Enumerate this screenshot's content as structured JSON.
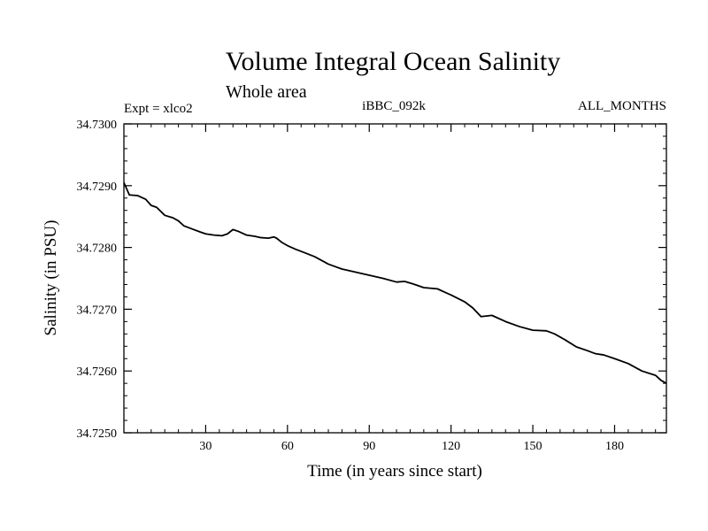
{
  "chart_data": {
    "type": "line",
    "title": "Volume Integral Ocean Salinity",
    "subtitle": "Whole area",
    "experiment": "Expt = xlco2",
    "run_id": "iBBC_092k",
    "months": "ALL_MONTHS",
    "xlabel": "Time (in years since start)",
    "ylabel": "Salinity (in PSU)",
    "xlim": [
      0,
      199
    ],
    "ylim": [
      34.725,
      34.73
    ],
    "xticks": [
      30,
      60,
      90,
      120,
      150,
      180
    ],
    "yticks": [
      34.725,
      34.726,
      34.727,
      34.728,
      34.729,
      34.73
    ],
    "ytick_labels": [
      "34.7250",
      "34.7260",
      "34.7270",
      "34.7280",
      "34.7290",
      "34.7300"
    ],
    "grid": false,
    "series": [
      {
        "name": "Salinity",
        "x": [
          0,
          2,
          5,
          8,
          10,
          12,
          15,
          18,
          20,
          22,
          25,
          28,
          30,
          33,
          36,
          38,
          40,
          42,
          45,
          48,
          50,
          53,
          55,
          56,
          58,
          60,
          63,
          66,
          70,
          75,
          80,
          85,
          90,
          95,
          100,
          103,
          106,
          110,
          115,
          120,
          125,
          128,
          131,
          135,
          140,
          145,
          150,
          155,
          158,
          162,
          166,
          170,
          173,
          176,
          180,
          185,
          190,
          195,
          197,
          199
        ],
        "y": [
          34.72905,
          34.72885,
          34.72884,
          34.72878,
          34.72868,
          34.72865,
          34.72852,
          34.72848,
          34.72843,
          34.72835,
          34.7283,
          34.72825,
          34.72822,
          34.7282,
          34.72819,
          34.72822,
          34.72829,
          34.72826,
          34.7282,
          34.72818,
          34.72816,
          34.72815,
          34.72817,
          34.72815,
          34.72808,
          34.72803,
          34.72797,
          34.72792,
          34.72785,
          34.72773,
          34.72765,
          34.7276,
          34.72755,
          34.7275,
          34.72744,
          34.72745,
          34.72741,
          34.72735,
          34.72733,
          34.72723,
          34.72712,
          34.72702,
          34.72688,
          34.7269,
          34.7268,
          34.72672,
          34.72666,
          34.72665,
          34.7266,
          34.7265,
          34.72639,
          34.72633,
          34.72628,
          34.72626,
          34.7262,
          34.72612,
          34.726,
          34.72593,
          34.72585,
          34.7258
        ]
      }
    ]
  }
}
